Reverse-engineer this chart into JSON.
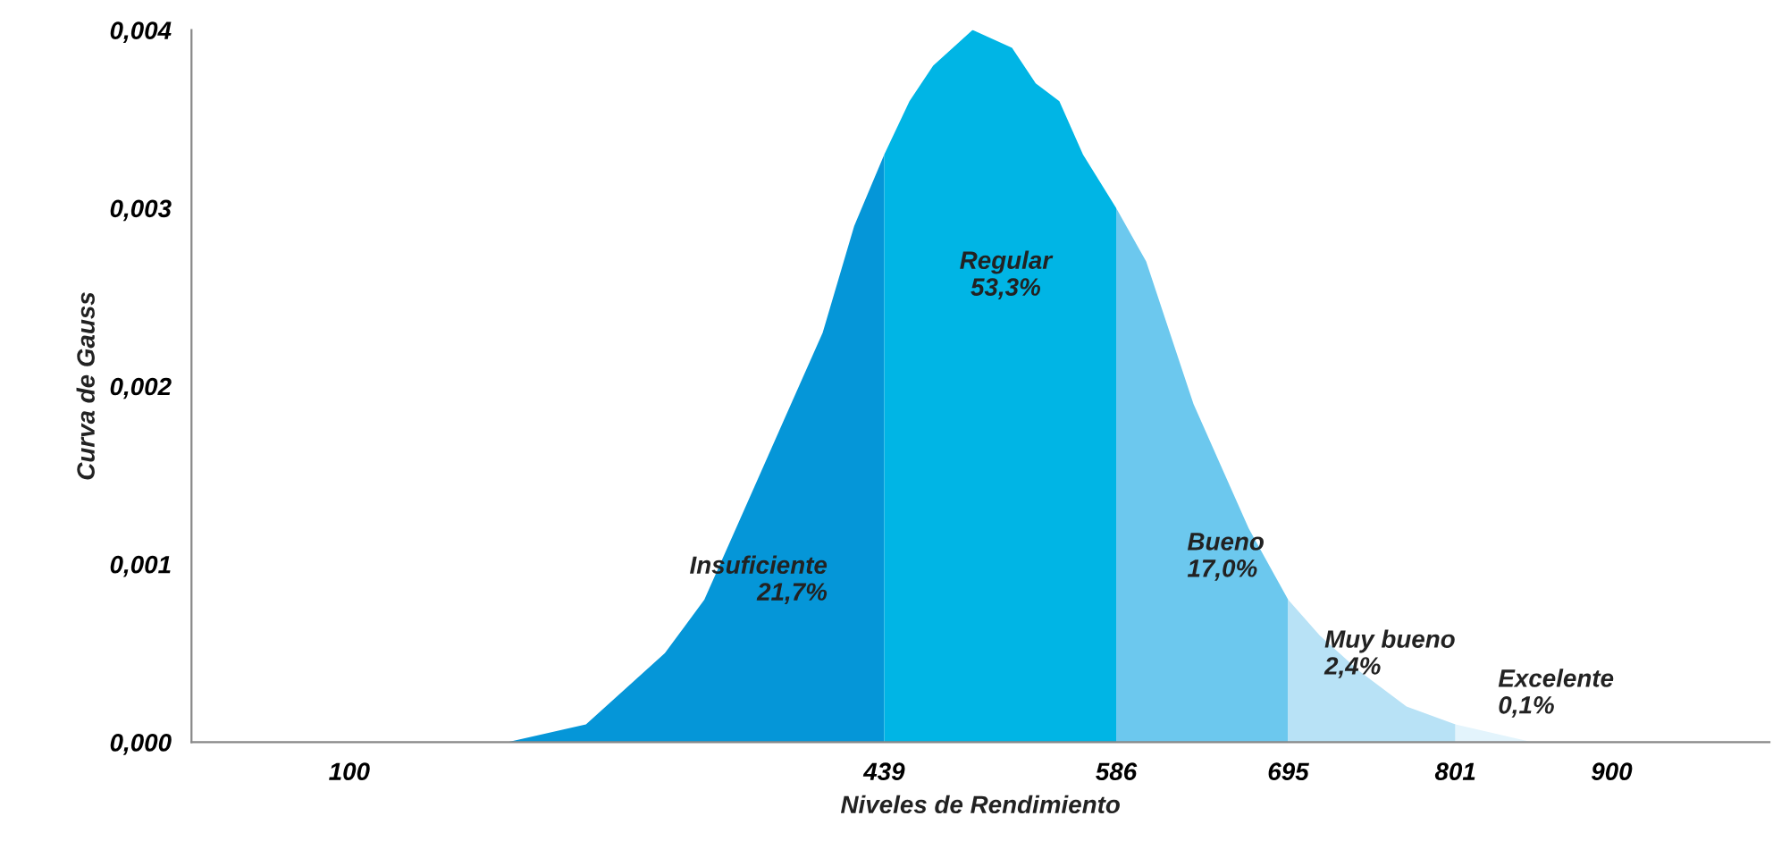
{
  "chart_data": {
    "type": "area",
    "xlabel": "Niveles de Rendimiento",
    "ylabel": "Curva de Gauss",
    "xlim": [
      0,
      1000
    ],
    "ylim": [
      0,
      0.004
    ],
    "xticks": [
      100,
      439,
      586,
      695,
      801,
      900
    ],
    "yticks": [
      {
        "value": 0,
        "label": "0,000"
      },
      {
        "value": 0.001,
        "label": "0,001"
      },
      {
        "value": 0.002,
        "label": "0,002"
      },
      {
        "value": 0.003,
        "label": "0,003"
      },
      {
        "value": 0.004,
        "label": "0,004"
      }
    ],
    "grid": false,
    "legend": false,
    "series": [
      {
        "color": "#0596d8",
        "x": [
          100,
          200,
          250,
          300,
          325,
          350,
          375,
          400,
          420,
          439
        ],
        "values": [
          0,
          0,
          0.0001,
          0.0005,
          0.0008,
          0.0013,
          0.0018,
          0.0023,
          0.0029,
          0.0033
        ]
      },
      {
        "color": "#00b5e5",
        "x": [
          439,
          455,
          470,
          495,
          520,
          535,
          550,
          565,
          586
        ],
        "values": [
          0.0033,
          0.0036,
          0.0038,
          0.004,
          0.0039,
          0.0037,
          0.0036,
          0.0033,
          0.003
        ]
      },
      {
        "color": "#6cc8ee",
        "x": [
          586,
          605,
          620,
          635,
          650,
          670,
          695
        ],
        "values": [
          0.003,
          0.0027,
          0.0023,
          0.0019,
          0.0016,
          0.0012,
          0.0008
        ]
      },
      {
        "color": "#b8e2f6",
        "x": [
          695,
          715,
          740,
          770,
          801
        ],
        "values": [
          0.0008,
          0.0006,
          0.0004,
          0.0002,
          0.0001
        ]
      },
      {
        "color": "#e3f4fc",
        "x": [
          801,
          850
        ],
        "values": [
          0.0001,
          0
        ]
      }
    ],
    "annotations": [
      "Insuficiente\n21,7%",
      "Regular\n53,3%",
      "Bueno\n17,0%",
      "Muy bueno\n2,4%",
      "Excelente\n0,1%"
    ]
  }
}
